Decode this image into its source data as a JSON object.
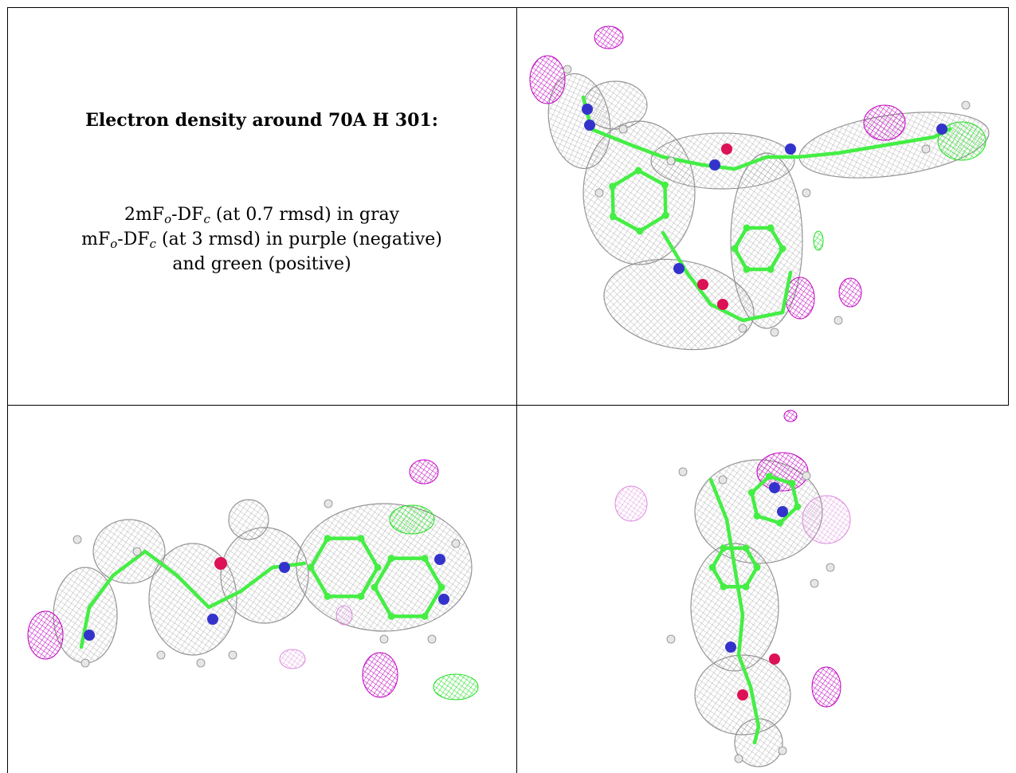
{
  "title": "Electron density around 70A H 301:",
  "legend": {
    "line1_a": "2mF",
    "line1_sub1": "o",
    "line1_b": "-DF",
    "line1_sub2": "c",
    "line1_c": " (at 0.7 rmsd) in gray",
    "line2_a": "mF",
    "line2_sub1": "o",
    "line2_b": "-DF",
    "line2_sub2": "c",
    "line2_c": " (at 3 rmsd) in purple (negative)",
    "line3": "and green (positive)"
  },
  "colors": {
    "density_2fofc": "#9a9a9a",
    "negative": "#c000c0",
    "positive": "#22dd22",
    "carbon": "#44ee44",
    "nitrogen": "#3333cc",
    "oxygen": "#dd1155",
    "hydrogen": "#e6e6e6"
  },
  "views": [
    "view-top-right",
    "view-bottom-left",
    "view-bottom-right"
  ]
}
